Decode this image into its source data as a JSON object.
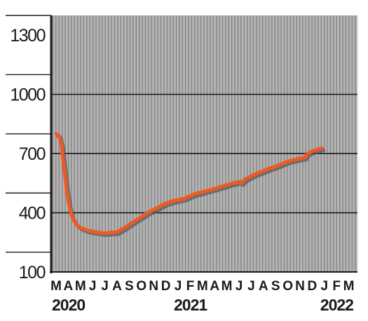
{
  "chart_data": {
    "type": "line",
    "title": "",
    "xlabel": "",
    "ylabel": "",
    "ylim": [
      100,
      1400
    ],
    "yticks": [
      100,
      400,
      700,
      1000,
      1300
    ],
    "ytick_labels": [
      "100",
      "400",
      "700",
      "1000",
      "1300"
    ],
    "grid": "horizontal lines at 400, 700, 1000; dense vertical stripes across plot",
    "colors": {
      "line": "#ee5a24",
      "plot_bg": "#b3b3b3",
      "stripe": "#8a8a8a",
      "grid": "#1a1a1a",
      "shadow": "#555555"
    },
    "month_labels": [
      "M",
      "A",
      "M",
      "J",
      "J",
      "A",
      "S",
      "O",
      "N",
      "D",
      "J",
      "F",
      "M",
      "A",
      "M",
      "J",
      "J",
      "A",
      "S",
      "O",
      "N",
      "D",
      "J",
      "F",
      "M"
    ],
    "year_labels": [
      {
        "label": "2020",
        "month_index": 0
      },
      {
        "label": "2021",
        "month_index": 10
      },
      {
        "label": "2022",
        "month_index": 22
      }
    ],
    "series": [
      {
        "values": [
          [
            0.0,
            800
          ],
          [
            0.25,
            790
          ],
          [
            0.45,
            740
          ],
          [
            0.65,
            630
          ],
          [
            0.85,
            520
          ],
          [
            1.05,
            440
          ],
          [
            1.3,
            380
          ],
          [
            1.6,
            345
          ],
          [
            2.0,
            325
          ],
          [
            2.5,
            312
          ],
          [
            3.0,
            305
          ],
          [
            3.5,
            300
          ],
          [
            4.0,
            296
          ],
          [
            4.5,
            300
          ],
          [
            5.0,
            302
          ],
          [
            5.5,
            320
          ],
          [
            6.0,
            340
          ],
          [
            6.5,
            360
          ],
          [
            7.0,
            380
          ],
          [
            7.5,
            400
          ],
          [
            8.0,
            415
          ],
          [
            8.5,
            432
          ],
          [
            9.0,
            448
          ],
          [
            9.5,
            458
          ],
          [
            10.0,
            465
          ],
          [
            10.5,
            472
          ],
          [
            11.0,
            486
          ],
          [
            11.5,
            498
          ],
          [
            12.0,
            505
          ],
          [
            12.5,
            514
          ],
          [
            13.0,
            522
          ],
          [
            13.5,
            532
          ],
          [
            14.0,
            540
          ],
          [
            14.5,
            550
          ],
          [
            15.0,
            557
          ],
          [
            15.2,
            550
          ],
          [
            15.5,
            570
          ],
          [
            16.0,
            586
          ],
          [
            16.5,
            600
          ],
          [
            17.0,
            612
          ],
          [
            17.5,
            625
          ],
          [
            18.0,
            634
          ],
          [
            18.5,
            648
          ],
          [
            19.0,
            660
          ],
          [
            19.5,
            668
          ],
          [
            20.0,
            675
          ],
          [
            20.4,
            680
          ],
          [
            20.6,
            700
          ],
          [
            21.0,
            712
          ],
          [
            21.5,
            722
          ],
          [
            21.8,
            727
          ]
        ]
      }
    ]
  }
}
